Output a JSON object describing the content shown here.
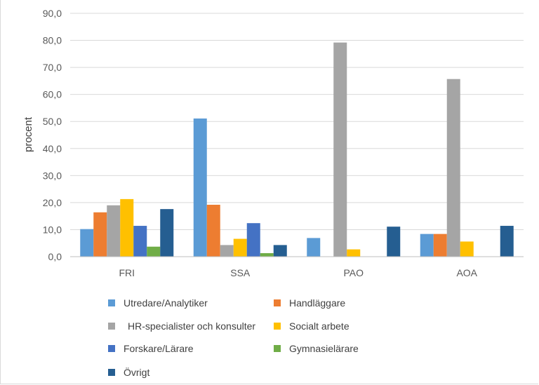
{
  "chart_data": {
    "type": "bar",
    "title": "",
    "xlabel": "",
    "ylabel": "procent",
    "ylim": [
      0,
      90
    ],
    "yticks": [
      "0,0",
      "10,0",
      "20,0",
      "30,0",
      "40,0",
      "50,0",
      "60,0",
      "70,0",
      "80,0",
      "90,0"
    ],
    "grid": true,
    "legend_position": "bottom",
    "categories": [
      "FRI",
      "SSA",
      "PAO",
      "AOA"
    ],
    "series": [
      {
        "name": "Utredare/Analytiker",
        "color": "#5B9BD5",
        "values": [
          10.2,
          51.1,
          6.9,
          8.4
        ]
      },
      {
        "name": "Handläggare",
        "color": "#ED7D31",
        "values": [
          16.4,
          19.2,
          0,
          8.4
        ]
      },
      {
        "name": "HR-specialister och konsulter",
        "color": "#A5A5A5",
        "values": [
          19.0,
          4.3,
          79.2,
          65.7
        ]
      },
      {
        "name": "Socialt arbete",
        "color": "#FFC000",
        "values": [
          21.3,
          6.6,
          2.7,
          5.6
        ]
      },
      {
        "name": "Forskare/Lärare",
        "color": "#4472C4",
        "values": [
          11.4,
          12.4,
          0,
          0
        ]
      },
      {
        "name": "Gymnasielärare",
        "color": "#70AD47",
        "values": [
          3.7,
          1.3,
          0,
          0
        ]
      },
      {
        "name": "Övrigt",
        "color": "#255E91",
        "values": [
          17.6,
          4.3,
          11.1,
          11.4
        ]
      }
    ]
  }
}
